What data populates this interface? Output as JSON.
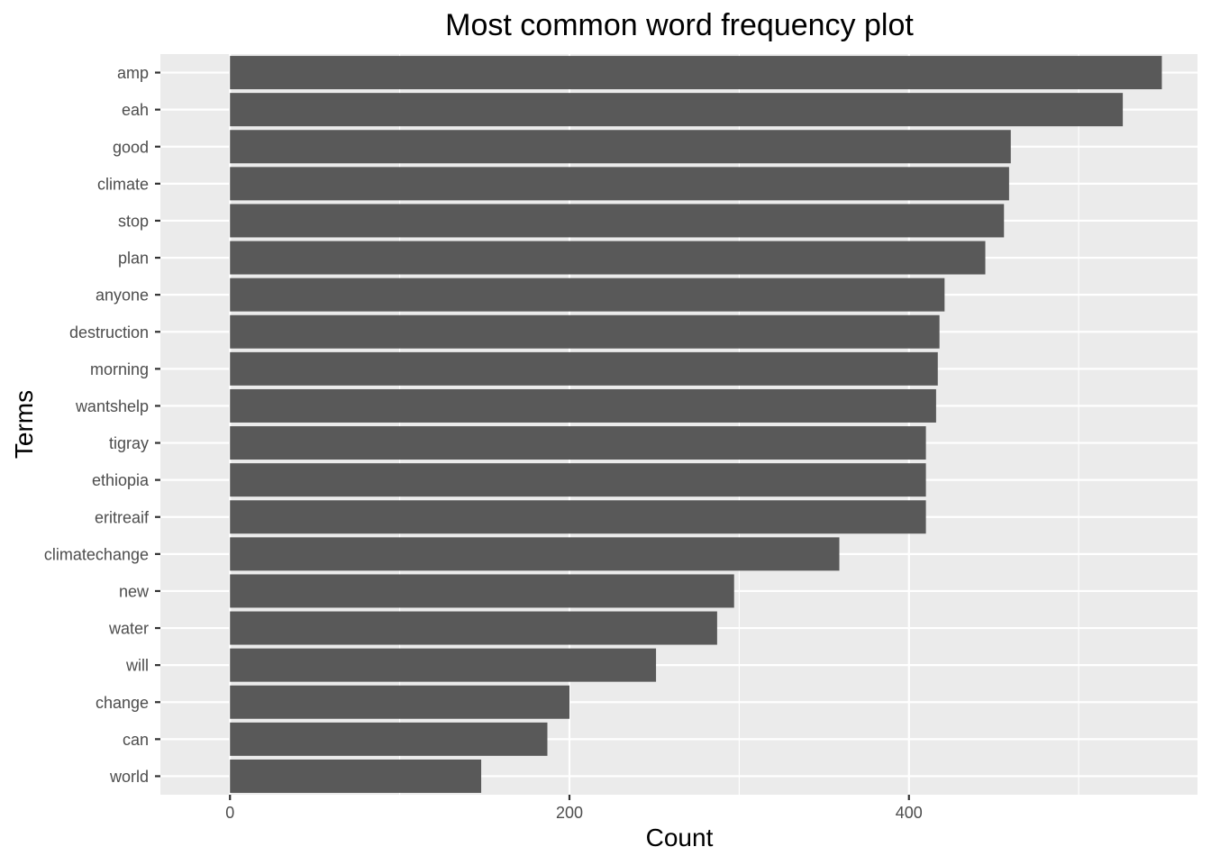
{
  "chart_data": {
    "type": "bar",
    "orientation": "horizontal",
    "title": "Most common word frequency plot",
    "xlabel": "Count",
    "ylabel": "Terms",
    "xlim": [
      -41,
      570
    ],
    "x_ticks": [
      0,
      200,
      400
    ],
    "grid": true,
    "legend": "none",
    "colors": {
      "bar": "#595959",
      "panel": "#ebebeb",
      "grid": "#ffffff",
      "tick": "#333333"
    },
    "categories": [
      "amp",
      "eah",
      "good",
      "climate",
      "stop",
      "plan",
      "anyone",
      "destruction",
      "morning",
      "wantshelp",
      "tigray",
      "ethiopia",
      "eritreaif",
      "climatechange",
      "new",
      "water",
      "will",
      "change",
      "can",
      "world"
    ],
    "values": [
      549,
      526,
      460,
      459,
      456,
      445,
      421,
      418,
      417,
      416,
      410,
      410,
      410,
      359,
      297,
      287,
      251,
      200,
      187,
      148
    ]
  }
}
